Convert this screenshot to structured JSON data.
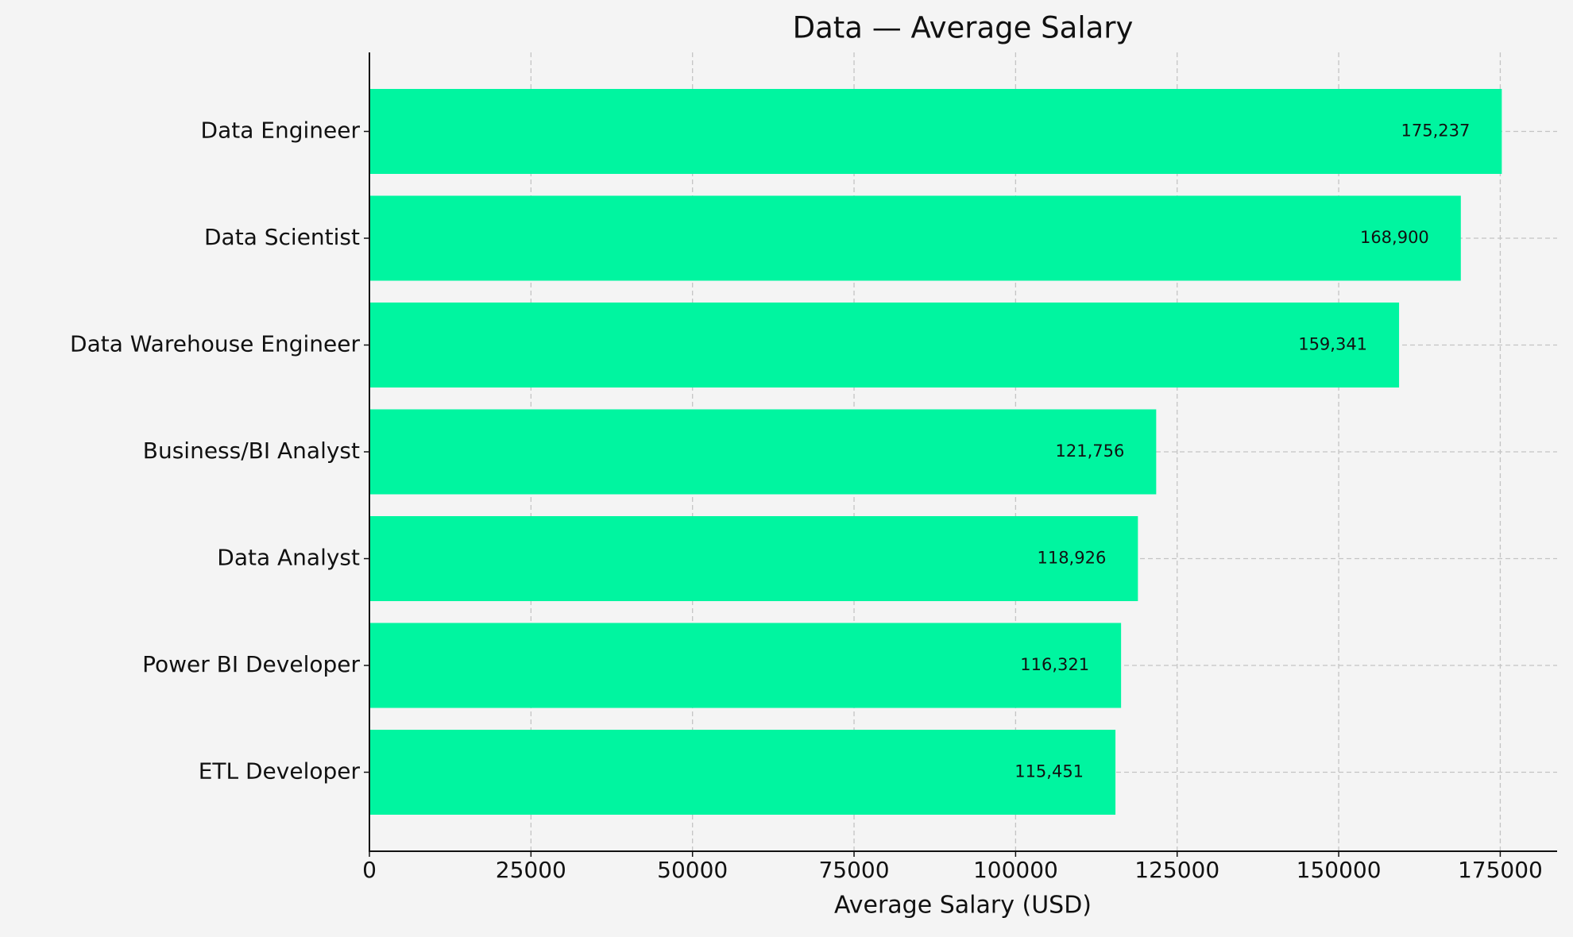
{
  "chart_data": {
    "type": "barh",
    "title": "Data — Average Salary",
    "xlabel": "Average Salary (USD)",
    "categories": [
      "Data Engineer",
      "Data Scientist",
      "Data Warehouse Engineer",
      "Business/BI Analyst",
      "Data Analyst",
      "Power BI Developer",
      "ETL Developer"
    ],
    "values": [
      175237,
      168900,
      159341,
      121756,
      118926,
      116321,
      115451
    ],
    "value_labels": [
      "175,237",
      "168,900",
      "159,341",
      "121,756",
      "118,926",
      "116,321",
      "115,451"
    ],
    "color": "#00f5a0",
    "xlim": [
      0,
      183800
    ],
    "xticks": [
      0,
      25000,
      50000,
      75000,
      100000,
      125000,
      150000,
      175000
    ],
    "grid": true
  }
}
